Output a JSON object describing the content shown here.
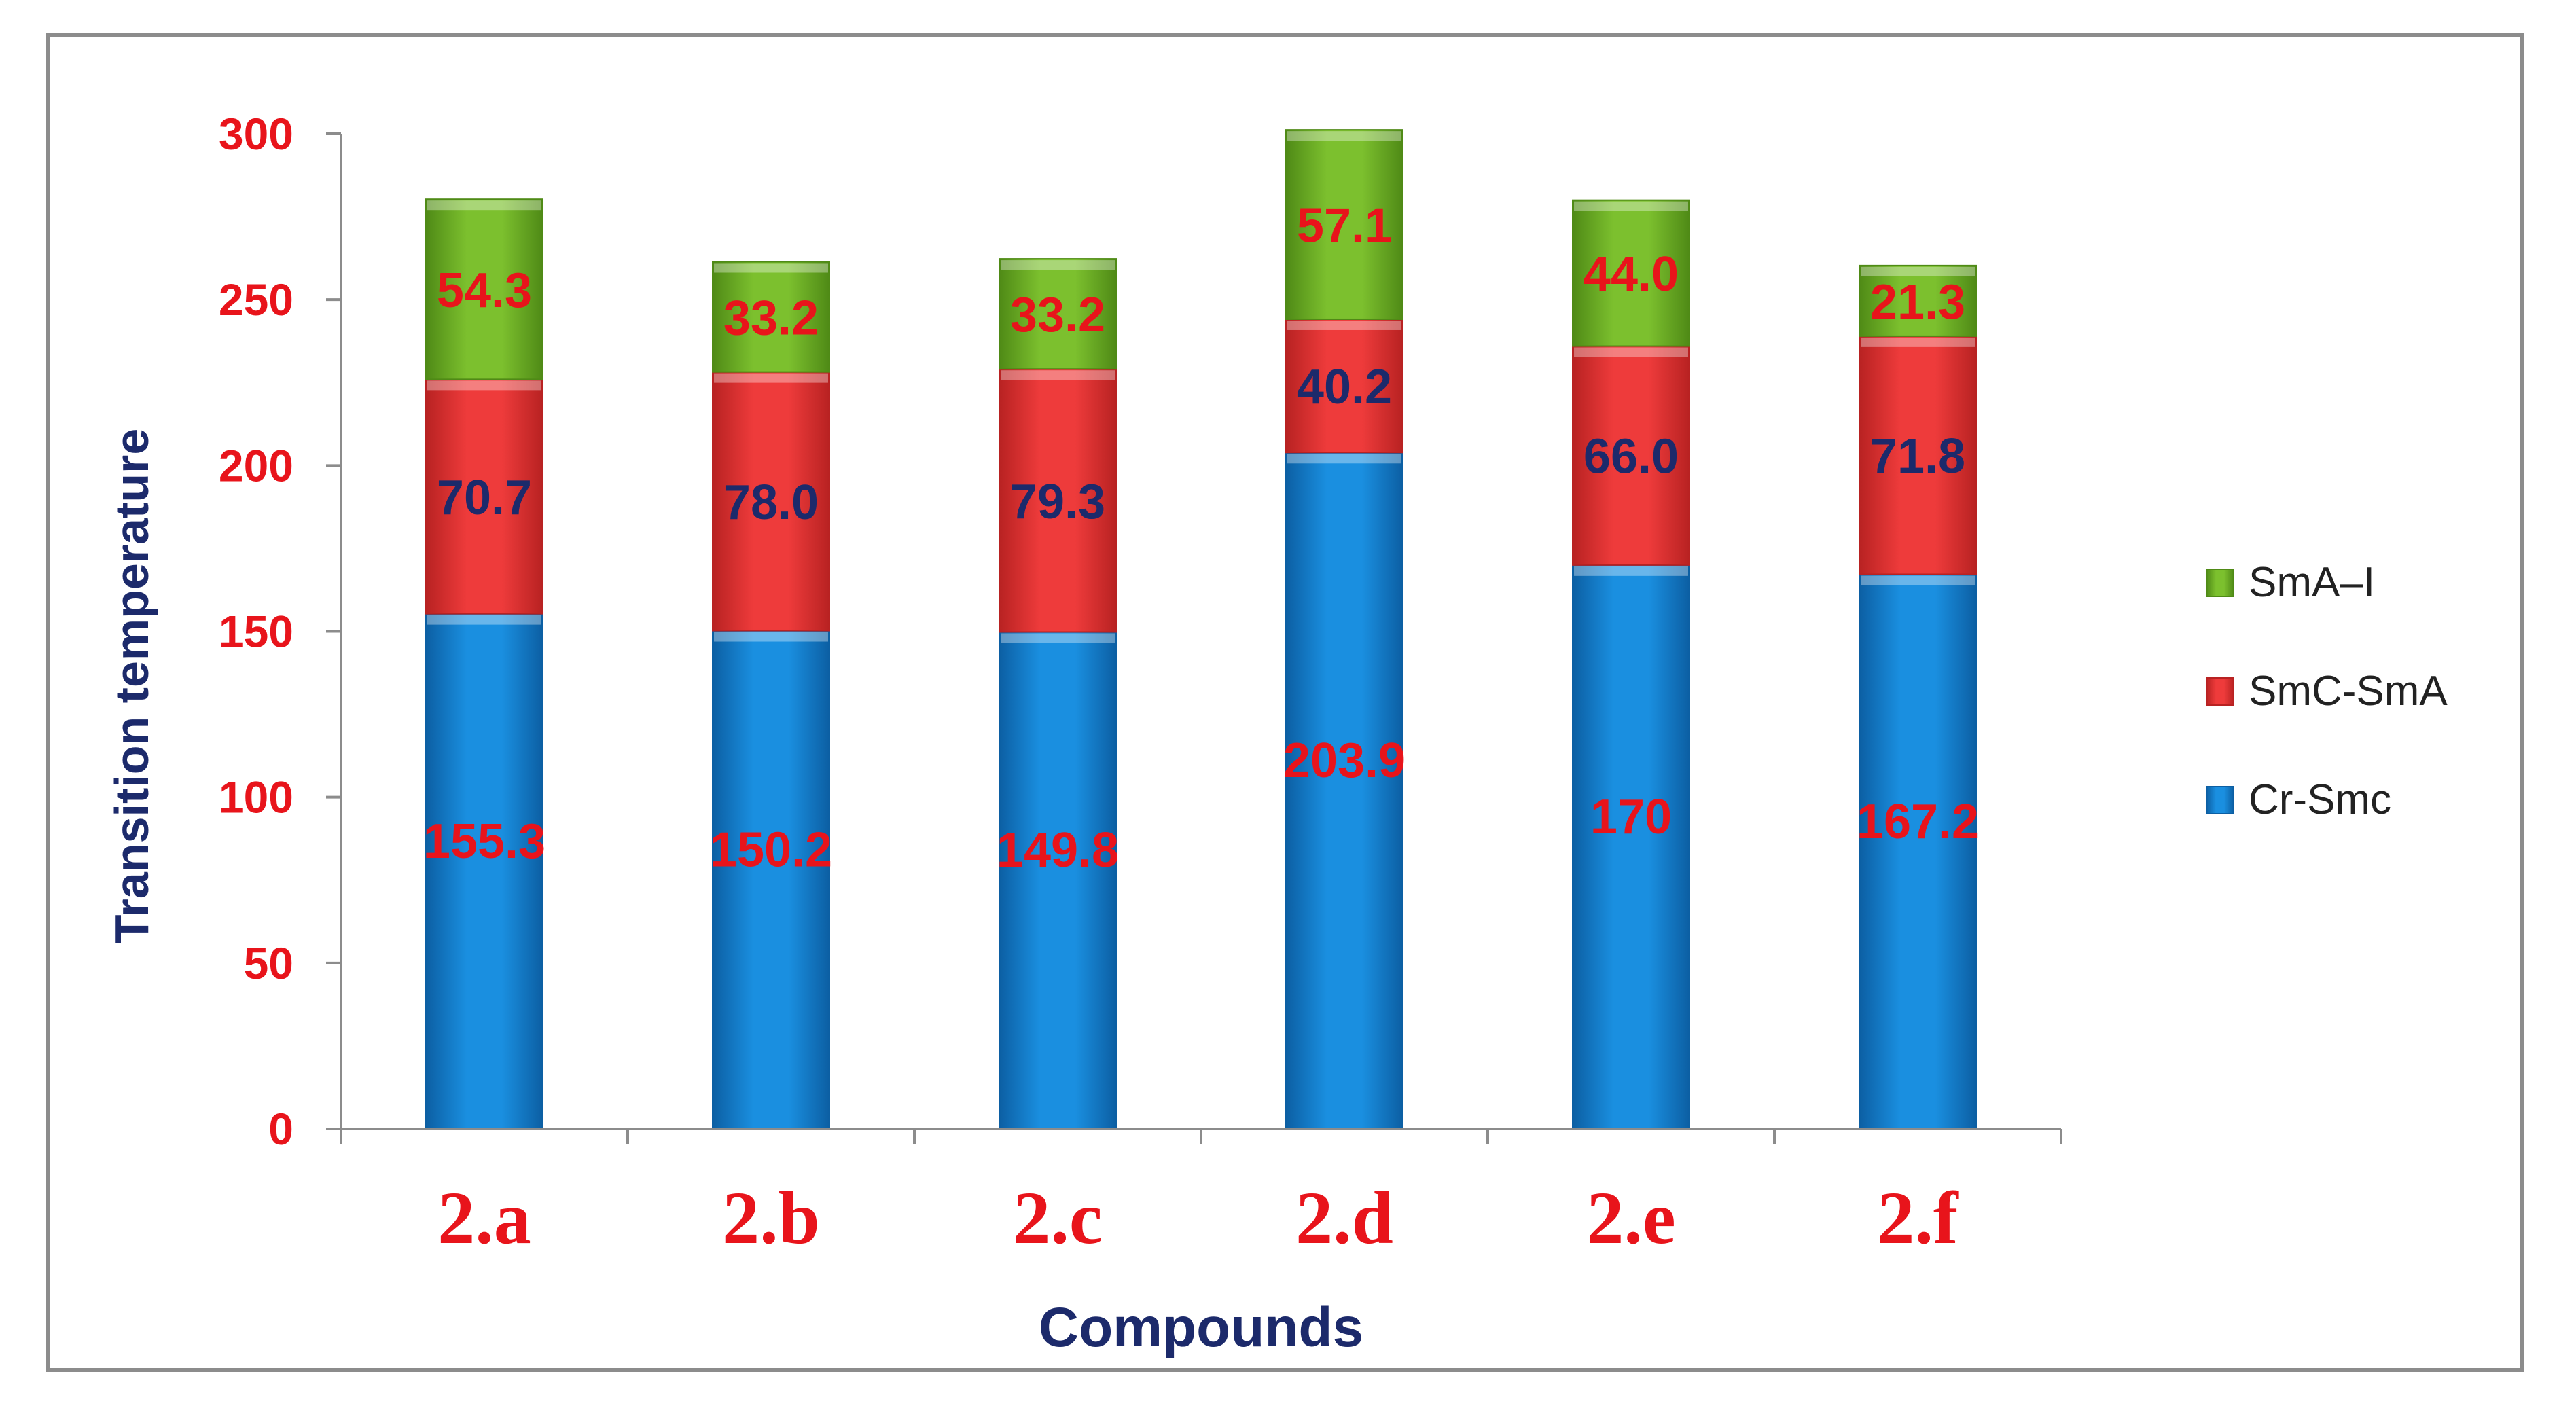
{
  "chart_data": {
    "type": "bar",
    "stacked": true,
    "categories": [
      "2.a",
      "2.b",
      "2.c",
      "2.d",
      "2.e",
      "2.f"
    ],
    "series": [
      {
        "name": "Cr-Smc",
        "values": [
          155.3,
          150.2,
          149.8,
          203.9,
          170,
          167.2
        ],
        "labels": [
          "155.3",
          "150.2",
          "149.8",
          "203.9",
          "170",
          "167.2"
        ]
      },
      {
        "name": "SmC-SmA",
        "values": [
          70.7,
          78.0,
          79.3,
          40.2,
          66.0,
          71.8
        ],
        "labels": [
          "70.7",
          "78.0",
          "79.3",
          "40.2",
          "66.0",
          "71.8"
        ]
      },
      {
        "name": "SmA–I",
        "values": [
          54.3,
          33.2,
          33.2,
          57.1,
          44.0,
          21.3
        ],
        "labels": [
          "54.3",
          "33.2",
          "33.2",
          "57.1",
          "44.0",
          "21.3"
        ]
      }
    ],
    "title": "",
    "xlabel": "Compounds",
    "ylabel": "Transition temperature",
    "ylim": [
      0,
      300
    ],
    "yticks": [
      "0",
      "50",
      "100",
      "150",
      "200",
      "250",
      "300"
    ],
    "grid": false,
    "legend": "right"
  },
  "colors": {
    "series": [
      "#1a8fe0",
      "#ee3b3b",
      "#7cc02e"
    ],
    "series_dark": [
      "#0c5fa3",
      "#b82222",
      "#4f8a16"
    ],
    "label_colors": [
      "#e8141b",
      "#1c2a6b",
      "#e8141b"
    ],
    "tick_color": "#e8141b",
    "axis_title_color": "#1c2a6b"
  }
}
